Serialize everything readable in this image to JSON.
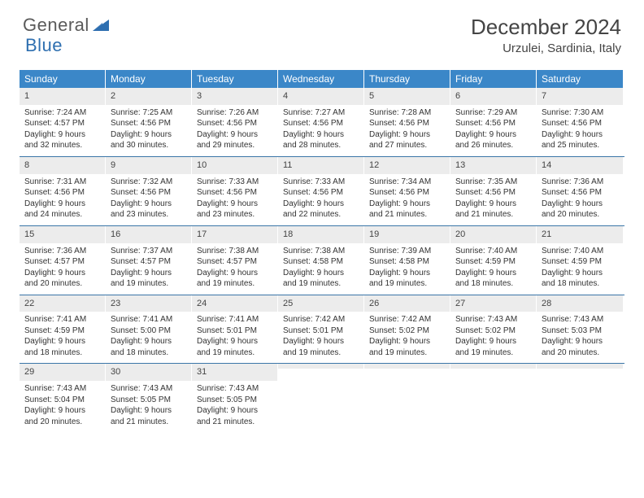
{
  "logo": {
    "part1": "General",
    "part2": "Blue"
  },
  "title": "December 2024",
  "location": "Urzulei, Sardinia, Italy",
  "colors": {
    "header_bg": "#3b87c8",
    "header_text": "#ffffff",
    "daynum_bg": "#ececec",
    "week_divider": "#3b76a8",
    "logo_gray": "#5a5a5a",
    "logo_blue": "#2e6fb0"
  },
  "dow": [
    "Sunday",
    "Monday",
    "Tuesday",
    "Wednesday",
    "Thursday",
    "Friday",
    "Saturday"
  ],
  "weeks": [
    [
      {
        "n": "1",
        "sr": "Sunrise: 7:24 AM",
        "ss": "Sunset: 4:57 PM",
        "d1": "Daylight: 9 hours",
        "d2": "and 32 minutes."
      },
      {
        "n": "2",
        "sr": "Sunrise: 7:25 AM",
        "ss": "Sunset: 4:56 PM",
        "d1": "Daylight: 9 hours",
        "d2": "and 30 minutes."
      },
      {
        "n": "3",
        "sr": "Sunrise: 7:26 AM",
        "ss": "Sunset: 4:56 PM",
        "d1": "Daylight: 9 hours",
        "d2": "and 29 minutes."
      },
      {
        "n": "4",
        "sr": "Sunrise: 7:27 AM",
        "ss": "Sunset: 4:56 PM",
        "d1": "Daylight: 9 hours",
        "d2": "and 28 minutes."
      },
      {
        "n": "5",
        "sr": "Sunrise: 7:28 AM",
        "ss": "Sunset: 4:56 PM",
        "d1": "Daylight: 9 hours",
        "d2": "and 27 minutes."
      },
      {
        "n": "6",
        "sr": "Sunrise: 7:29 AM",
        "ss": "Sunset: 4:56 PM",
        "d1": "Daylight: 9 hours",
        "d2": "and 26 minutes."
      },
      {
        "n": "7",
        "sr": "Sunrise: 7:30 AM",
        "ss": "Sunset: 4:56 PM",
        "d1": "Daylight: 9 hours",
        "d2": "and 25 minutes."
      }
    ],
    [
      {
        "n": "8",
        "sr": "Sunrise: 7:31 AM",
        "ss": "Sunset: 4:56 PM",
        "d1": "Daylight: 9 hours",
        "d2": "and 24 minutes."
      },
      {
        "n": "9",
        "sr": "Sunrise: 7:32 AM",
        "ss": "Sunset: 4:56 PM",
        "d1": "Daylight: 9 hours",
        "d2": "and 23 minutes."
      },
      {
        "n": "10",
        "sr": "Sunrise: 7:33 AM",
        "ss": "Sunset: 4:56 PM",
        "d1": "Daylight: 9 hours",
        "d2": "and 23 minutes."
      },
      {
        "n": "11",
        "sr": "Sunrise: 7:33 AM",
        "ss": "Sunset: 4:56 PM",
        "d1": "Daylight: 9 hours",
        "d2": "and 22 minutes."
      },
      {
        "n": "12",
        "sr": "Sunrise: 7:34 AM",
        "ss": "Sunset: 4:56 PM",
        "d1": "Daylight: 9 hours",
        "d2": "and 21 minutes."
      },
      {
        "n": "13",
        "sr": "Sunrise: 7:35 AM",
        "ss": "Sunset: 4:56 PM",
        "d1": "Daylight: 9 hours",
        "d2": "and 21 minutes."
      },
      {
        "n": "14",
        "sr": "Sunrise: 7:36 AM",
        "ss": "Sunset: 4:56 PM",
        "d1": "Daylight: 9 hours",
        "d2": "and 20 minutes."
      }
    ],
    [
      {
        "n": "15",
        "sr": "Sunrise: 7:36 AM",
        "ss": "Sunset: 4:57 PM",
        "d1": "Daylight: 9 hours",
        "d2": "and 20 minutes."
      },
      {
        "n": "16",
        "sr": "Sunrise: 7:37 AM",
        "ss": "Sunset: 4:57 PM",
        "d1": "Daylight: 9 hours",
        "d2": "and 19 minutes."
      },
      {
        "n": "17",
        "sr": "Sunrise: 7:38 AM",
        "ss": "Sunset: 4:57 PM",
        "d1": "Daylight: 9 hours",
        "d2": "and 19 minutes."
      },
      {
        "n": "18",
        "sr": "Sunrise: 7:38 AM",
        "ss": "Sunset: 4:58 PM",
        "d1": "Daylight: 9 hours",
        "d2": "and 19 minutes."
      },
      {
        "n": "19",
        "sr": "Sunrise: 7:39 AM",
        "ss": "Sunset: 4:58 PM",
        "d1": "Daylight: 9 hours",
        "d2": "and 19 minutes."
      },
      {
        "n": "20",
        "sr": "Sunrise: 7:40 AM",
        "ss": "Sunset: 4:59 PM",
        "d1": "Daylight: 9 hours",
        "d2": "and 18 minutes."
      },
      {
        "n": "21",
        "sr": "Sunrise: 7:40 AM",
        "ss": "Sunset: 4:59 PM",
        "d1": "Daylight: 9 hours",
        "d2": "and 18 minutes."
      }
    ],
    [
      {
        "n": "22",
        "sr": "Sunrise: 7:41 AM",
        "ss": "Sunset: 4:59 PM",
        "d1": "Daylight: 9 hours",
        "d2": "and 18 minutes."
      },
      {
        "n": "23",
        "sr": "Sunrise: 7:41 AM",
        "ss": "Sunset: 5:00 PM",
        "d1": "Daylight: 9 hours",
        "d2": "and 18 minutes."
      },
      {
        "n": "24",
        "sr": "Sunrise: 7:41 AM",
        "ss": "Sunset: 5:01 PM",
        "d1": "Daylight: 9 hours",
        "d2": "and 19 minutes."
      },
      {
        "n": "25",
        "sr": "Sunrise: 7:42 AM",
        "ss": "Sunset: 5:01 PM",
        "d1": "Daylight: 9 hours",
        "d2": "and 19 minutes."
      },
      {
        "n": "26",
        "sr": "Sunrise: 7:42 AM",
        "ss": "Sunset: 5:02 PM",
        "d1": "Daylight: 9 hours",
        "d2": "and 19 minutes."
      },
      {
        "n": "27",
        "sr": "Sunrise: 7:43 AM",
        "ss": "Sunset: 5:02 PM",
        "d1": "Daylight: 9 hours",
        "d2": "and 19 minutes."
      },
      {
        "n": "28",
        "sr": "Sunrise: 7:43 AM",
        "ss": "Sunset: 5:03 PM",
        "d1": "Daylight: 9 hours",
        "d2": "and 20 minutes."
      }
    ],
    [
      {
        "n": "29",
        "sr": "Sunrise: 7:43 AM",
        "ss": "Sunset: 5:04 PM",
        "d1": "Daylight: 9 hours",
        "d2": "and 20 minutes."
      },
      {
        "n": "30",
        "sr": "Sunrise: 7:43 AM",
        "ss": "Sunset: 5:05 PM",
        "d1": "Daylight: 9 hours",
        "d2": "and 21 minutes."
      },
      {
        "n": "31",
        "sr": "Sunrise: 7:43 AM",
        "ss": "Sunset: 5:05 PM",
        "d1": "Daylight: 9 hours",
        "d2": "and 21 minutes."
      },
      {
        "empty": true
      },
      {
        "empty": true
      },
      {
        "empty": true
      },
      {
        "empty": true
      }
    ]
  ]
}
